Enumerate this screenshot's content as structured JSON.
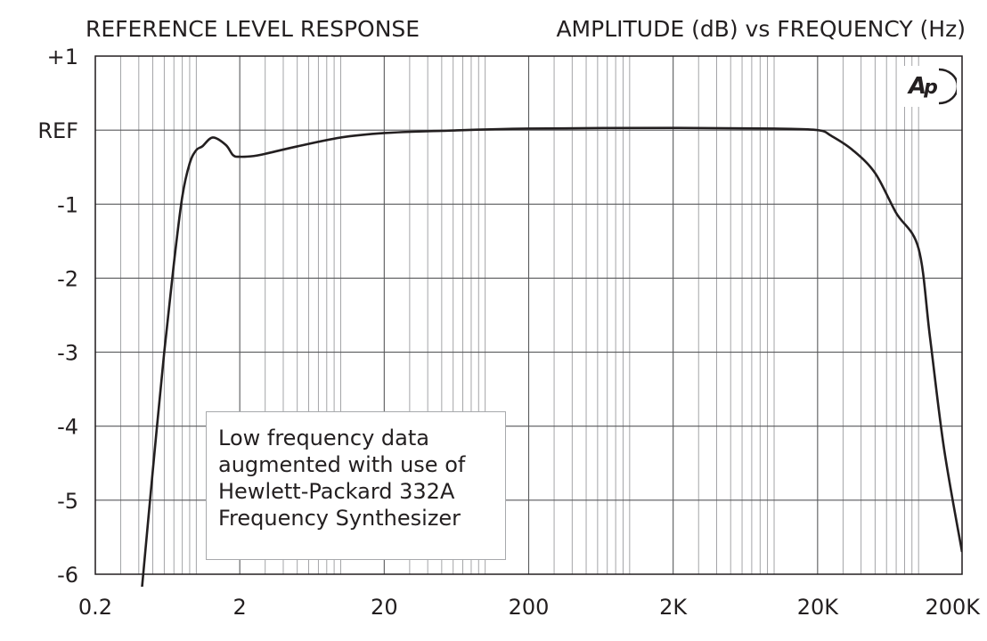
{
  "chart_data": {
    "type": "line",
    "title_left": "REFERENCE LEVEL RESPONSE",
    "title_right": "AMPLITUDE (dB) vs FREQUENCY (Hz)",
    "x_scale": "log",
    "xlim": [
      0.2,
      200000
    ],
    "x_tick_values": [
      0.2,
      2,
      20,
      200,
      2000,
      20000,
      200000
    ],
    "x_tick_labels": [
      "0.2",
      "2",
      "20",
      "200",
      "2K",
      "20K",
      "200K"
    ],
    "ylim": [
      -6,
      1
    ],
    "y_tick_values": [
      1,
      0,
      -1,
      -2,
      -3,
      -4,
      -5,
      -6
    ],
    "y_tick_labels": [
      "+1",
      "REF",
      "-1",
      "-2",
      "-3",
      "-4",
      "-5",
      "-6"
    ],
    "grid": true,
    "series": [
      {
        "x": [
          0.42,
          0.5,
          0.6,
          0.7,
          0.8,
          0.9,
          1.0,
          1.1,
          1.3,
          1.6,
          1.8,
          2.0,
          2.5,
          3,
          5,
          10,
          20,
          50,
          200,
          2000,
          10000,
          20000,
          25000,
          35000,
          50000,
          70000,
          100000,
          120000,
          150000,
          200000
        ],
        "y": [
          -6.2,
          -4.6,
          -3.0,
          -1.8,
          -0.9,
          -0.45,
          -0.27,
          -0.22,
          -0.1,
          -0.2,
          -0.34,
          -0.36,
          -0.35,
          -0.32,
          -0.22,
          -0.1,
          -0.04,
          -0.01,
          0.02,
          0.03,
          0.02,
          0.0,
          -0.08,
          -0.27,
          -0.58,
          -1.12,
          -1.6,
          -2.8,
          -4.3,
          -5.7
        ]
      }
    ],
    "annotation": [
      "Low frequency data",
      "augmented with use of",
      "Hewlett-Packard 332A",
      "Frequency Synthesizer"
    ],
    "logo_text": "AP"
  }
}
